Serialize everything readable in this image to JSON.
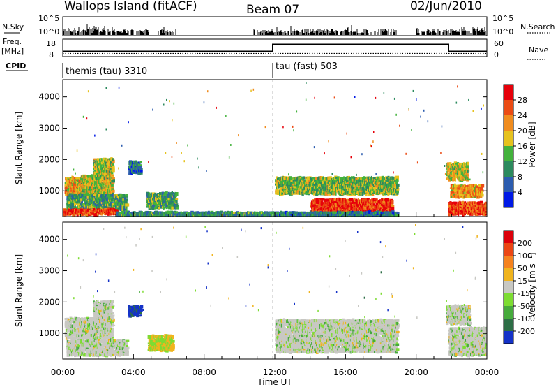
{
  "header": {
    "station": "Wallops Island (fitACF)",
    "beam": "Beam 07",
    "date": "02/Jun/2010"
  },
  "strip_labels": {
    "nsky": "N.Sky",
    "nsky_ticks": [
      "10^5",
      "10^0"
    ],
    "nsearch": "N.Search",
    "nsearch_ticks": [
      "10^5",
      "10^0"
    ],
    "freq": "Freq.",
    "freq_unit": "[MHz]",
    "freq_ticks": [
      "18",
      "8"
    ],
    "nave": "Nave",
    "nave_ticks": [
      "60",
      "0"
    ],
    "cpid": "CPID"
  },
  "cpid_modes": [
    {
      "label": "themis (tau) 3310",
      "start_hour": 0
    },
    {
      "label": "tau (fast) 503",
      "start_hour": 12
    }
  ],
  "chart_data": [
    {
      "type": "heatmap",
      "name": "power",
      "ylabel": "Slant Range [km]",
      "ylim": [
        180,
        4550
      ],
      "yticks": [
        1000,
        2000,
        3000,
        4000
      ],
      "xlim": [
        0,
        24
      ],
      "colorbar": {
        "label": "Power [dB]",
        "ticks": [
          "4",
          "8",
          "12",
          "16",
          "20",
          "24",
          "28"
        ],
        "colors": [
          "#0019e6",
          "#2c5caf",
          "#2c8a5e",
          "#43b23c",
          "#e6c21e",
          "#f08c1e",
          "#eb4b14",
          "#e6000a"
        ]
      },
      "regions": [
        {
          "h0": 0.1,
          "h1": 1.7,
          "r0": 850,
          "r1": 1450,
          "level": 0.65
        },
        {
          "h0": 1.0,
          "h1": 2.8,
          "r0": 900,
          "r1": 1500,
          "level": 0.55
        },
        {
          "h0": 1.7,
          "h1": 2.8,
          "r0": 1400,
          "r1": 2050,
          "level": 0.5
        },
        {
          "h0": 0.2,
          "h1": 3.6,
          "r0": 400,
          "r1": 900,
          "level": 0.35
        },
        {
          "h0": 0.0,
          "h1": 3.0,
          "r0": 250,
          "r1": 420,
          "level": 0.9
        },
        {
          "h0": 3.7,
          "h1": 4.4,
          "r0": 1550,
          "r1": 1950,
          "level": 0.2
        },
        {
          "h0": 4.7,
          "h1": 6.4,
          "r0": 450,
          "r1": 950,
          "level": 0.35
        },
        {
          "h0": 3.0,
          "h1": 12.0,
          "r0": 180,
          "r1": 330,
          "level": 0.3
        },
        {
          "h0": 12.0,
          "h1": 18.9,
          "r0": 900,
          "r1": 1450,
          "level": 0.45
        },
        {
          "h0": 14.0,
          "h1": 18.6,
          "r0": 350,
          "r1": 750,
          "level": 0.92
        },
        {
          "h0": 12.0,
          "h1": 18.9,
          "r0": 180,
          "r1": 330,
          "level": 0.25
        },
        {
          "h0": 21.7,
          "h1": 22.9,
          "r0": 1350,
          "r1": 1900,
          "level": 0.55
        },
        {
          "h0": 21.9,
          "h1": 23.7,
          "r0": 800,
          "r1": 1200,
          "level": 0.7
        },
        {
          "h0": 21.8,
          "h1": 24.0,
          "r0": 250,
          "r1": 650,
          "level": 0.88
        }
      ]
    },
    {
      "type": "heatmap",
      "name": "velocity",
      "ylabel": "Slant Range [km]",
      "xlabel": "Time UT",
      "ylim": [
        180,
        4550
      ],
      "yticks": [
        1000,
        2000,
        3000,
        4000
      ],
      "xlim": [
        0,
        24
      ],
      "xticks": [
        "00:00",
        "04:00",
        "08:00",
        "12:00",
        "16:00",
        "20:00",
        "00:00"
      ],
      "colorbar": {
        "label": "Velocity [m s⁻¹]",
        "ticks": [
          "200",
          "100",
          "50",
          "15",
          "-15",
          "-50",
          "-100",
          "-200"
        ],
        "colors": [
          "#1432c8",
          "#2d6e46",
          "#46aa3c",
          "#7ddc32",
          "#c8c8c3",
          "#f0b41e",
          "#f5821e",
          "#eb4614",
          "#dc000a"
        ]
      },
      "regions": [
        {
          "h0": 0.1,
          "h1": 2.8,
          "r0": 850,
          "r1": 1500,
          "level": 0.5
        },
        {
          "h0": 1.7,
          "h1": 2.8,
          "r0": 1400,
          "r1": 2050,
          "level": 0.5
        },
        {
          "h0": 0.2,
          "h1": 3.6,
          "r0": 300,
          "r1": 800,
          "level": 0.3
        },
        {
          "h0": 3.7,
          "h1": 4.4,
          "r0": 1550,
          "r1": 1900,
          "level": 0.05
        },
        {
          "h0": 4.8,
          "h1": 6.2,
          "r0": 450,
          "r1": 950,
          "level": 0.7
        },
        {
          "h0": 12.0,
          "h1": 18.9,
          "r0": 400,
          "r1": 1450,
          "level": 0.5
        },
        {
          "h0": 21.7,
          "h1": 23.0,
          "r0": 1300,
          "r1": 1900,
          "level": 0.5
        },
        {
          "h0": 21.8,
          "h1": 24.0,
          "r0": 300,
          "r1": 1200,
          "level": 0.5
        }
      ]
    }
  ]
}
